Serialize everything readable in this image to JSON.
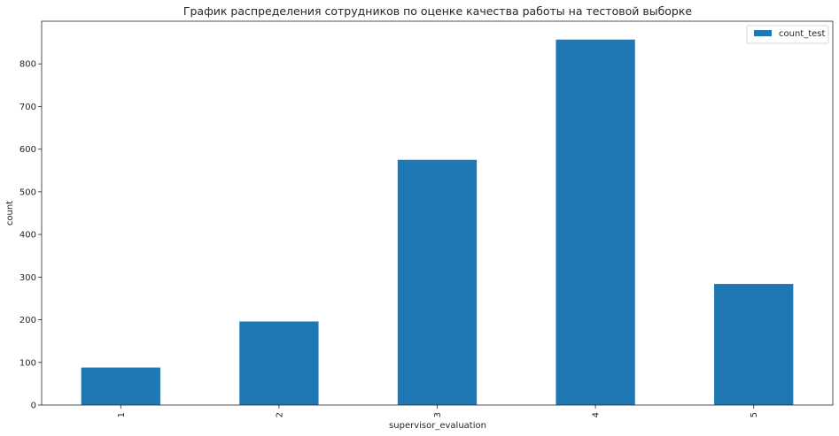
{
  "chart_data": {
    "type": "bar",
    "title": "График распределения сотрудников по оценке качества работы на тестовой выборке",
    "xlabel": "supervisor_evaluation",
    "ylabel": "count",
    "categories": [
      "1",
      "2",
      "3",
      "4",
      "5"
    ],
    "series": [
      {
        "name": "count_test",
        "values": [
          88,
          196,
          575,
          857,
          284
        ],
        "color": "#1f77b4"
      }
    ],
    "ylim": [
      0,
      900
    ],
    "yticks": [
      0,
      100,
      200,
      300,
      400,
      500,
      600,
      700,
      800
    ],
    "grid": false,
    "legend": "top-right",
    "xtick_rotation": "vertical"
  }
}
